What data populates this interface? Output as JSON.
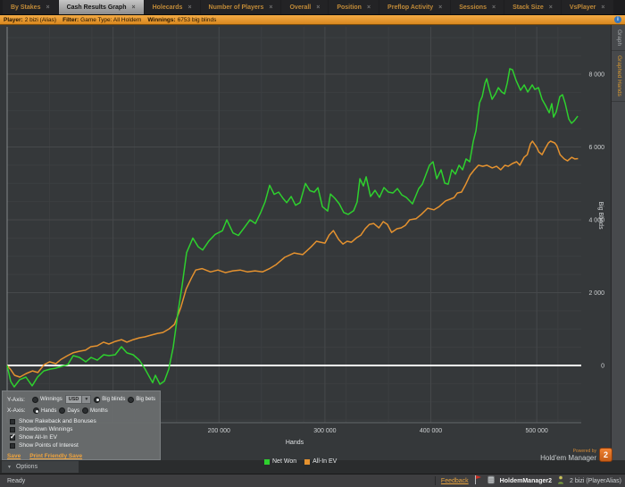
{
  "tabs": [
    {
      "label": "By Stakes",
      "active": false
    },
    {
      "label": "Cash Results Graph",
      "active": true
    },
    {
      "label": "Holecards",
      "active": false
    },
    {
      "label": "Number of Players",
      "active": false
    },
    {
      "label": "Overall",
      "active": false
    },
    {
      "label": "Position",
      "active": false
    },
    {
      "label": "Preflop Activity",
      "active": false
    },
    {
      "label": "Sessions",
      "active": false
    },
    {
      "label": "Stack Size",
      "active": false
    },
    {
      "label": "VsPlayer",
      "active": false
    }
  ],
  "info_bar": {
    "player_label": "Player:",
    "player": "2 bizi (Alias)",
    "filter_label": "Filter:",
    "filter": "Game Type: All Holdem",
    "winnings_label": "Winnings:",
    "winnings": "6753 big blinds",
    "info_icon": "i"
  },
  "right_strip": {
    "tab_graph": "Graph",
    "tab_graphed_hands": "Graphed Hands"
  },
  "options_panel": {
    "y_axis_label": "Y-Axis:",
    "y_axis_options": [
      {
        "label": "Winnings",
        "selected": false
      },
      {
        "label": "Big blinds",
        "selected": true
      },
      {
        "label": "Big bets",
        "selected": false
      }
    ],
    "currency": "USD",
    "x_axis_label": "X-Axis:",
    "x_axis_options": [
      {
        "label": "Hands",
        "selected": true
      },
      {
        "label": "Days",
        "selected": false
      },
      {
        "label": "Months",
        "selected": false
      }
    ],
    "checkboxes": [
      {
        "label": "Show Rakeback and Bonuses",
        "checked": false
      },
      {
        "label": "Showdown Winnings",
        "checked": false
      },
      {
        "label": "Show All-In EV",
        "checked": true
      },
      {
        "label": "Show Points of Interest",
        "checked": false
      }
    ],
    "save_label": "Save",
    "print_label": "Print Friendly Save"
  },
  "options_bar": {
    "label": "Options",
    "chevron": "▼"
  },
  "powered": {
    "line1": "Powered by",
    "line2": "Hold'em Manager",
    "badge": "2"
  },
  "status_bar": {
    "ready": "Ready",
    "feedback": "Feedback",
    "app": "HoldemManager2",
    "player": "2 bizi (PlayerAlias)"
  },
  "colors": {
    "net_won": "#2ed02e",
    "all_in_ev": "#e5922f",
    "chart_bg": "#35383a",
    "grid_major": "#46494b",
    "grid_minor": "#3c3f41",
    "zero_line": "#ffffff",
    "accent_orange": "#e8a43f",
    "active_tab": "#b5b5b5"
  },
  "chart_data": {
    "type": "line",
    "title": "",
    "xlabel": "Hands",
    "ylabel": "Big Blinds",
    "xlim": [
      0,
      542000
    ],
    "ylim": [
      -1570,
      9300
    ],
    "grid": true,
    "legend_position": "bottom",
    "x_ticks": [
      200000,
      300000,
      400000,
      500000
    ],
    "x_tick_labels": [
      "200 000",
      "300 000",
      "400 000",
      "500 000"
    ],
    "y_ticks": [
      0,
      2000,
      4000,
      6000,
      8000
    ],
    "y_tick_labels": [
      "0",
      "2 000",
      "4 000",
      "6 000",
      "8 000"
    ],
    "series": [
      {
        "name": "Net Won",
        "color": "#2ed02e",
        "points": [
          [
            0,
            0
          ],
          [
            3400,
            -440
          ],
          [
            6700,
            -590
          ],
          [
            11800,
            -390
          ],
          [
            17700,
            -320
          ],
          [
            23600,
            -560
          ],
          [
            28700,
            -320
          ],
          [
            34600,
            -150
          ],
          [
            40500,
            -100
          ],
          [
            45500,
            -75
          ],
          [
            51400,
            -25
          ],
          [
            57300,
            25
          ],
          [
            62400,
            270
          ],
          [
            68300,
            220
          ],
          [
            74200,
            100
          ],
          [
            79200,
            220
          ],
          [
            85100,
            145
          ],
          [
            91100,
            295
          ],
          [
            96100,
            270
          ],
          [
            102000,
            295
          ],
          [
            107900,
            515
          ],
          [
            113000,
            345
          ],
          [
            118900,
            295
          ],
          [
            124800,
            145
          ],
          [
            129800,
            -75
          ],
          [
            134000,
            -300
          ],
          [
            137400,
            -470
          ],
          [
            139900,
            -270
          ],
          [
            144200,
            -515
          ],
          [
            148400,
            -430
          ],
          [
            152600,
            -100
          ],
          [
            156800,
            500
          ],
          [
            161000,
            1400
          ],
          [
            165200,
            2200
          ],
          [
            169400,
            3100
          ],
          [
            175300,
            3500
          ],
          [
            180400,
            3260
          ],
          [
            184600,
            3170
          ],
          [
            190500,
            3420
          ],
          [
            196400,
            3600
          ],
          [
            203200,
            3700
          ],
          [
            207400,
            4000
          ],
          [
            213300,
            3640
          ],
          [
            218300,
            3570
          ],
          [
            224200,
            3800
          ],
          [
            229300,
            4000
          ],
          [
            234400,
            3900
          ],
          [
            239400,
            4200
          ],
          [
            243600,
            4500
          ],
          [
            247800,
            4950
          ],
          [
            252100,
            4700
          ],
          [
            256300,
            4760
          ],
          [
            260500,
            4590
          ],
          [
            263900,
            4470
          ],
          [
            268100,
            4640
          ],
          [
            272300,
            4400
          ],
          [
            276500,
            4470
          ],
          [
            281600,
            5000
          ],
          [
            285800,
            4800
          ],
          [
            290000,
            4760
          ],
          [
            293400,
            4880
          ],
          [
            297600,
            4360
          ],
          [
            302600,
            4240
          ],
          [
            305200,
            4710
          ],
          [
            309400,
            4590
          ],
          [
            313600,
            4440
          ],
          [
            317800,
            4200
          ],
          [
            322000,
            4150
          ],
          [
            327100,
            4250
          ],
          [
            330400,
            4490
          ],
          [
            333000,
            5130
          ],
          [
            336300,
            4930
          ],
          [
            338900,
            5180
          ],
          [
            343100,
            4640
          ],
          [
            347300,
            4810
          ],
          [
            351500,
            4615
          ],
          [
            355700,
            4885
          ],
          [
            359900,
            4760
          ],
          [
            364200,
            4735
          ],
          [
            368400,
            4860
          ],
          [
            372600,
            4685
          ],
          [
            376800,
            4615
          ],
          [
            382700,
            4440
          ],
          [
            388600,
            4860
          ],
          [
            392000,
            4980
          ],
          [
            398700,
            5500
          ],
          [
            402100,
            5595
          ],
          [
            405500,
            5130
          ],
          [
            409700,
            5375
          ],
          [
            413100,
            5005
          ],
          [
            416400,
            4980
          ],
          [
            419800,
            5375
          ],
          [
            423200,
            5255
          ],
          [
            426600,
            5500
          ],
          [
            430000,
            5375
          ],
          [
            433300,
            5670
          ],
          [
            436700,
            5595
          ],
          [
            440100,
            6160
          ],
          [
            442600,
            6450
          ],
          [
            446000,
            7215
          ],
          [
            448500,
            7385
          ],
          [
            451100,
            7755
          ],
          [
            452700,
            7875
          ],
          [
            455200,
            7580
          ],
          [
            457800,
            7310
          ],
          [
            461100,
            7460
          ],
          [
            463700,
            7630
          ],
          [
            467000,
            7510
          ],
          [
            469600,
            7460
          ],
          [
            472100,
            7755
          ],
          [
            474600,
            8150
          ],
          [
            477100,
            8120
          ],
          [
            480500,
            7830
          ],
          [
            484700,
            7555
          ],
          [
            488100,
            7705
          ],
          [
            491500,
            7510
          ],
          [
            495700,
            7705
          ],
          [
            498200,
            7580
          ],
          [
            501600,
            7630
          ],
          [
            505000,
            7310
          ],
          [
            508300,
            7140
          ],
          [
            511700,
            6940
          ],
          [
            514200,
            7190
          ],
          [
            515900,
            6820
          ],
          [
            518400,
            6970
          ],
          [
            521800,
            7385
          ],
          [
            524300,
            7435
          ],
          [
            526900,
            7190
          ],
          [
            530200,
            6770
          ],
          [
            532800,
            6650
          ],
          [
            535300,
            6720
          ],
          [
            538700,
            6850
          ]
        ]
      },
      {
        "name": "All-In EV",
        "color": "#e5922f",
        "points": [
          [
            0,
            0
          ],
          [
            3000,
            -100
          ],
          [
            7000,
            -270
          ],
          [
            12000,
            -320
          ],
          [
            18000,
            -220
          ],
          [
            24000,
            -150
          ],
          [
            29000,
            -195
          ],
          [
            35000,
            25
          ],
          [
            40000,
            100
          ],
          [
            46000,
            50
          ],
          [
            51000,
            170
          ],
          [
            57000,
            270
          ],
          [
            62000,
            345
          ],
          [
            68000,
            390
          ],
          [
            74000,
            420
          ],
          [
            79000,
            515
          ],
          [
            85000,
            540
          ],
          [
            91000,
            640
          ],
          [
            96000,
            590
          ],
          [
            102000,
            660
          ],
          [
            108000,
            710
          ],
          [
            113000,
            640
          ],
          [
            119000,
            710
          ],
          [
            125000,
            760
          ],
          [
            130000,
            785
          ],
          [
            136000,
            835
          ],
          [
            142000,
            880
          ],
          [
            147000,
            905
          ],
          [
            153000,
            1005
          ],
          [
            158000,
            1130
          ],
          [
            164000,
            1600
          ],
          [
            169000,
            2100
          ],
          [
            174000,
            2400
          ],
          [
            178000,
            2620
          ],
          [
            184000,
            2660
          ],
          [
            192000,
            2570
          ],
          [
            199000,
            2620
          ],
          [
            206000,
            2550
          ],
          [
            213000,
            2600
          ],
          [
            220000,
            2620
          ],
          [
            227000,
            2570
          ],
          [
            234000,
            2600
          ],
          [
            241000,
            2570
          ],
          [
            248000,
            2666
          ],
          [
            254000,
            2770
          ],
          [
            262000,
            2970
          ],
          [
            271000,
            3090
          ],
          [
            279000,
            3045
          ],
          [
            287000,
            3260
          ],
          [
            292000,
            3410
          ],
          [
            296000,
            3385
          ],
          [
            300000,
            3360
          ],
          [
            304000,
            3580
          ],
          [
            308000,
            3705
          ],
          [
            313000,
            3460
          ],
          [
            317000,
            3335
          ],
          [
            321000,
            3410
          ],
          [
            325000,
            3385
          ],
          [
            330000,
            3510
          ],
          [
            334000,
            3580
          ],
          [
            338000,
            3755
          ],
          [
            342000,
            3875
          ],
          [
            346000,
            3900
          ],
          [
            351000,
            3780
          ],
          [
            355000,
            3950
          ],
          [
            359000,
            3875
          ],
          [
            363000,
            3655
          ],
          [
            368000,
            3755
          ],
          [
            372000,
            3780
          ],
          [
            376000,
            3850
          ],
          [
            380000,
            4000
          ],
          [
            386000,
            4030
          ],
          [
            391000,
            4150
          ],
          [
            397000,
            4320
          ],
          [
            403000,
            4275
          ],
          [
            408000,
            4365
          ],
          [
            414000,
            4520
          ],
          [
            418000,
            4565
          ],
          [
            422000,
            4610
          ],
          [
            425000,
            4735
          ],
          [
            429000,
            4760
          ],
          [
            433000,
            4980
          ],
          [
            437000,
            5225
          ],
          [
            441000,
            5375
          ],
          [
            445000,
            5500
          ],
          [
            449000,
            5470
          ],
          [
            453000,
            5500
          ],
          [
            458000,
            5425
          ],
          [
            462000,
            5470
          ],
          [
            466000,
            5375
          ],
          [
            470000,
            5500
          ],
          [
            473000,
            5470
          ],
          [
            477000,
            5545
          ],
          [
            481000,
            5595
          ],
          [
            484000,
            5500
          ],
          [
            488000,
            5715
          ],
          [
            491000,
            5790
          ],
          [
            494000,
            6085
          ],
          [
            496000,
            6160
          ],
          [
            500000,
            5990
          ],
          [
            502000,
            5865
          ],
          [
            505000,
            5790
          ],
          [
            508000,
            5960
          ],
          [
            511000,
            6110
          ],
          [
            513000,
            6160
          ],
          [
            517000,
            6110
          ],
          [
            519000,
            6035
          ],
          [
            522000,
            5790
          ],
          [
            526000,
            5670
          ],
          [
            529000,
            5620
          ],
          [
            533000,
            5715
          ],
          [
            536000,
            5670
          ],
          [
            539000,
            5680
          ]
        ]
      }
    ]
  }
}
